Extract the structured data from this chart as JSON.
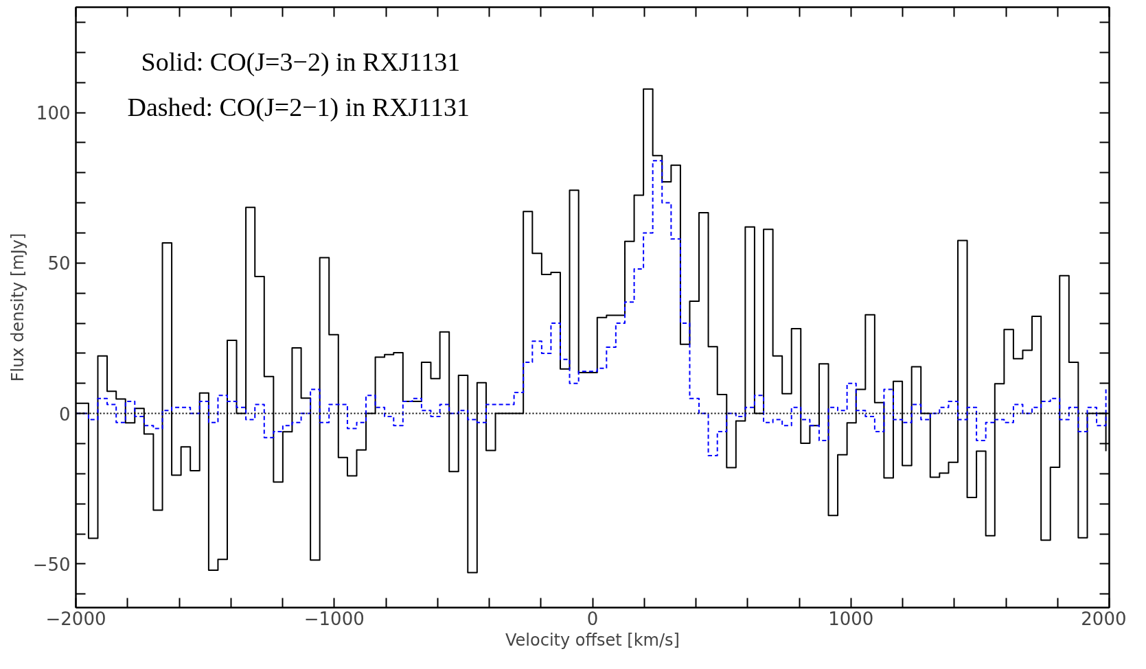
{
  "chart_data": {
    "type": "step",
    "xlabel": "Velocity offset [km/s]",
    "ylabel": "Flux density [mJy]",
    "annotations": [
      "Solid: CO(J=3−2) in RXJ1131",
      "Dashed: CO(J=2−1) in RXJ1131"
    ],
    "xlim": [
      -2000,
      2000
    ],
    "ylim": [
      -64.5,
      135
    ],
    "xticks": [
      -2000,
      {
        "value": -1800,
        "label": null
      },
      {
        "value": -1600,
        "label": null
      },
      {
        "value": -1400,
        "label": null
      },
      {
        "value": -1200,
        "label": null
      },
      -1000,
      {
        "value": -800,
        "label": null
      },
      {
        "value": -600,
        "label": null
      },
      {
        "value": -400,
        "label": null
      },
      {
        "value": -200,
        "label": null
      },
      0,
      {
        "value": 200,
        "label": null
      },
      {
        "value": 400,
        "label": null
      },
      {
        "value": 600,
        "label": null
      },
      {
        "value": 800,
        "label": null
      },
      1000,
      {
        "value": 1200,
        "label": null
      },
      {
        "value": 1400,
        "label": null
      },
      {
        "value": 1600,
        "label": null
      },
      {
        "value": 1800,
        "label": null
      },
      2000
    ],
    "yticks": [
      {
        "value": -60,
        "label": null
      },
      -50,
      {
        "value": -40,
        "label": null
      },
      {
        "value": -30,
        "label": null
      },
      {
        "value": -20,
        "label": null
      },
      {
        "value": -10,
        "label": null
      },
      0,
      {
        "value": 10,
        "label": null
      },
      {
        "value": 20,
        "label": null
      },
      {
        "value": 30,
        "label": null
      },
      {
        "value": 40,
        "label": null
      },
      50,
      {
        "value": 60,
        "label": null
      },
      {
        "value": 70,
        "label": null
      },
      {
        "value": 80,
        "label": null
      },
      {
        "value": 90,
        "label": null
      },
      100,
      {
        "value": 110,
        "label": null
      },
      {
        "value": 120,
        "label": null
      },
      {
        "value": 130,
        "label": null
      }
    ],
    "grid": false,
    "ref_lines": [
      {
        "axis": "y",
        "value": 0,
        "label": null,
        "color": "#000000",
        "line_style": "dotted"
      }
    ],
    "x": [
      -2000,
      -1951,
      -1915,
      -1879,
      -1844,
      -1808,
      -1772,
      -1736,
      -1700,
      -1665,
      -1629,
      -1593,
      -1557,
      -1521,
      -1486,
      -1450,
      -1414,
      -1378,
      -1342,
      -1307,
      -1271,
      -1235,
      -1199,
      -1163,
      -1128,
      -1092,
      -1056,
      -1020,
      -984,
      -949,
      -913,
      -877,
      -841,
      -805,
      -770,
      -734,
      -698,
      -662,
      -626,
      -591,
      -555,
      -519,
      -483,
      -447,
      -412,
      -376,
      -340,
      -304,
      -268,
      -233,
      -197,
      -161,
      -125,
      -89,
      -54,
      -18,
      18,
      54,
      90,
      125,
      161,
      197,
      233,
      269,
      304,
      340,
      376,
      412,
      448,
      483,
      519,
      555,
      591,
      627,
      662,
      698,
      734,
      770,
      806,
      841,
      877,
      913,
      949,
      985,
      1020,
      1056,
      1092,
      1128,
      1164,
      1199,
      1235,
      1271,
      1307,
      1343,
      1378,
      1414,
      1450,
      1486,
      1522,
      1557,
      1593,
      1629,
      1665,
      1701,
      1736,
      1772,
      1808,
      1844,
      1880,
      1915,
      1951,
      1987
    ],
    "series": [
      {
        "color": "#000000",
        "line_style": "solid",
        "values": [
          3.4,
          -41.5,
          19.1,
          7.4,
          4.8,
          -3.1,
          1.7,
          -6.8,
          -32.1,
          56.7,
          -20.5,
          -11.1,
          -19.0,
          6.8,
          -52.1,
          -48.5,
          24.3,
          0,
          68.5,
          45.5,
          12.3,
          -22.8,
          -6.1,
          21.8,
          5.1,
          -48.7,
          51.8,
          26.2,
          -14.6,
          -20.7,
          -12.1,
          0,
          18.7,
          19.6,
          20.2,
          4.0,
          4.0,
          17.0,
          11.6,
          27.1,
          -19.3,
          12.7,
          -52.9,
          10.2,
          -12.3,
          0,
          0,
          0,
          67.1,
          53.2,
          46.2,
          46.9,
          14.8,
          74.2,
          13.6,
          13.6,
          31.9,
          32.6,
          32.6,
          57.2,
          72.5,
          107.8,
          85.7,
          77,
          82.5,
          23.0,
          37.3,
          66.7,
          22.2,
          6.3,
          -18.0,
          -2.5,
          62.0,
          0,
          61.2,
          19.1,
          6.6,
          28.2,
          -9.9,
          -4.0,
          16.5,
          -33.9,
          -13.7,
          -3.1,
          8.0,
          32.8,
          3.6,
          -21.4,
          10.7,
          -17.3,
          15.5,
          0,
          -21.2,
          -19.8,
          -16.2,
          57.5,
          -27.9,
          -12.5,
          -40.6,
          9.9,
          27.9,
          18.2,
          21.0,
          32.3,
          -42.1,
          -17.9,
          45.8,
          17.0,
          -41.3,
          null,
          0,
          -12.5
        ]
      },
      {
        "color": "#0000ff",
        "line_style": "dashed",
        "values": [
          0,
          -2,
          5,
          3,
          -3,
          4,
          -1,
          -4,
          -5,
          1,
          2,
          2,
          0,
          4,
          -3,
          6,
          4,
          2,
          -2,
          3,
          -8,
          -6,
          -4,
          -3,
          0,
          8,
          -3,
          3,
          3,
          -5,
          -3,
          6,
          2,
          -1,
          -4,
          4,
          5,
          1,
          -1,
          3,
          0,
          1,
          -2,
          -3,
          3,
          3,
          3,
          7,
          17,
          24,
          20,
          30,
          18,
          10,
          14,
          14,
          15,
          22,
          30,
          37,
          48,
          60,
          84,
          70,
          58,
          30,
          5,
          0,
          -14,
          -6,
          0,
          -1,
          2,
          6,
          -3,
          -2,
          -4,
          2,
          -2,
          -4,
          -9,
          2,
          1,
          10,
          1,
          -1,
          -6,
          8,
          -2,
          -3,
          3,
          -2,
          0,
          2,
          4,
          -2,
          2,
          -9,
          -3,
          -2,
          -3,
          3,
          0,
          2,
          4,
          5,
          -2,
          2,
          -6,
          2,
          -4,
          8
        ]
      }
    ]
  }
}
